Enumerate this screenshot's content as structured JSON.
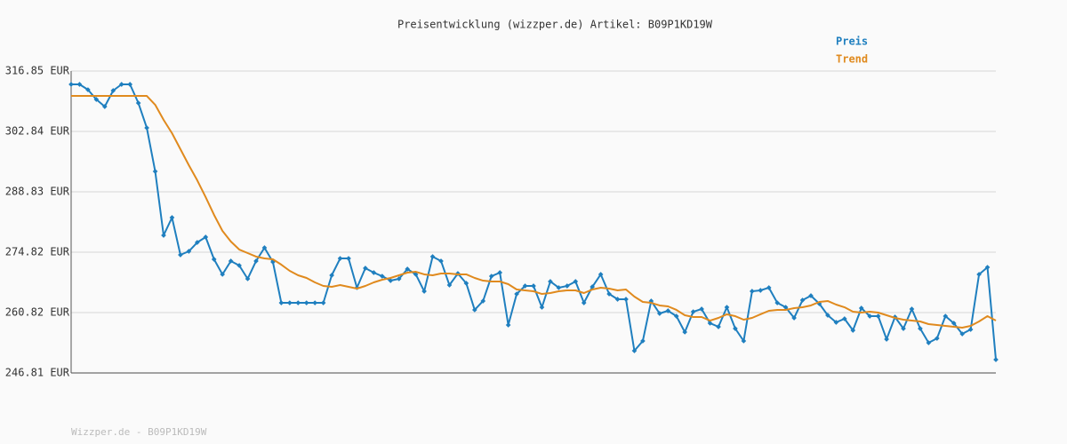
{
  "chart_data": {
    "type": "line",
    "title": "Preisentwicklung (wizzper.de) Artikel: B09P1KD19W",
    "footer": "Wizzper.de - B09P1KD19W",
    "ylim": [
      246.81,
      316.85
    ],
    "yticks": [
      {
        "value": 246.81,
        "label": "246.81 EUR"
      },
      {
        "value": 260.82,
        "label": "260.82 EUR"
      },
      {
        "value": 274.82,
        "label": "274.82 EUR"
      },
      {
        "value": 288.83,
        "label": "288.83 EUR"
      },
      {
        "value": 302.84,
        "label": "302.84 EUR"
      },
      {
        "value": 316.85,
        "label": "316.85 EUR"
      }
    ],
    "grid": true,
    "legend": "top-right",
    "series": [
      {
        "name": "Preis",
        "color": "#1f7fbf",
        "markers": true,
        "values": [
          313.76,
          313.76,
          312.52,
          310.26,
          308.61,
          312.32,
          313.76,
          313.76,
          309.43,
          303.67,
          293.57,
          278.74,
          282.86,
          274.21,
          275.03,
          277.09,
          278.33,
          273.18,
          269.68,
          272.77,
          271.74,
          268.65,
          272.77,
          275.86,
          272.56,
          263.08,
          263.08,
          263.08,
          263.08,
          263.08,
          263.08,
          269.47,
          273.38,
          273.38,
          266.59,
          271.12,
          270.09,
          269.26,
          268.23,
          268.65,
          270.91,
          269.68,
          265.76,
          273.8,
          272.77,
          267.2,
          269.88,
          267.62,
          261.44,
          263.5,
          269.26,
          270.09,
          257.93,
          265.14,
          267.0,
          267.0,
          262.05,
          268.03,
          266.59,
          267.0,
          268.03,
          263.08,
          266.79,
          269.68,
          265.14,
          263.91,
          263.91,
          251.96,
          254.23,
          263.5,
          260.61,
          261.23,
          259.99,
          256.29,
          261.02,
          261.64,
          258.35,
          257.52,
          262.05,
          257.11,
          254.23,
          265.76,
          265.97,
          266.59,
          263.08,
          262.05,
          259.58,
          263.7,
          264.73,
          262.88,
          260.2,
          258.55,
          259.38,
          256.7,
          261.85,
          259.99,
          259.99,
          254.64,
          259.79,
          257.11,
          261.64,
          257.11,
          253.81,
          254.84,
          259.99,
          258.35,
          255.87,
          256.9,
          269.68,
          271.32,
          249.9
        ]
      },
      {
        "name": "Trend",
        "color": "#e08a1e",
        "markers": false,
        "values": [
          311.08,
          311.08,
          311.08,
          311.08,
          311.08,
          311.08,
          311.08,
          311.08,
          311.08,
          311.08,
          309.02,
          305.52,
          302.43,
          298.72,
          295.01,
          291.51,
          287.6,
          283.48,
          279.77,
          277.3,
          275.44,
          274.62,
          273.8,
          273.38,
          273.18,
          271.94,
          270.5,
          269.47,
          268.85,
          267.82,
          267.0,
          266.79,
          267.2,
          266.79,
          266.38,
          267.0,
          267.82,
          268.44,
          268.85,
          269.47,
          270.09,
          270.29,
          269.68,
          269.47,
          269.88,
          269.88,
          269.68,
          269.68,
          268.85,
          268.23,
          268.03,
          268.03,
          267.41,
          266.17,
          265.97,
          265.76,
          265.14,
          265.35,
          265.76,
          265.97,
          265.97,
          265.35,
          266.17,
          266.59,
          266.38,
          265.97,
          266.17,
          264.53,
          263.29,
          263.08,
          262.47,
          262.26,
          261.44,
          260.2,
          259.79,
          259.79,
          258.96,
          259.58,
          260.41,
          259.99,
          259.17,
          259.58,
          260.41,
          261.23,
          261.44,
          261.44,
          261.85,
          262.05,
          262.47,
          263.29,
          263.5,
          262.67,
          262.05,
          261.02,
          260.82,
          261.02,
          260.82,
          260.2,
          259.58,
          259.17,
          258.96,
          258.76,
          258.14,
          257.93,
          257.73,
          257.52,
          257.32,
          257.73,
          258.76,
          259.99,
          258.96
        ]
      }
    ]
  }
}
